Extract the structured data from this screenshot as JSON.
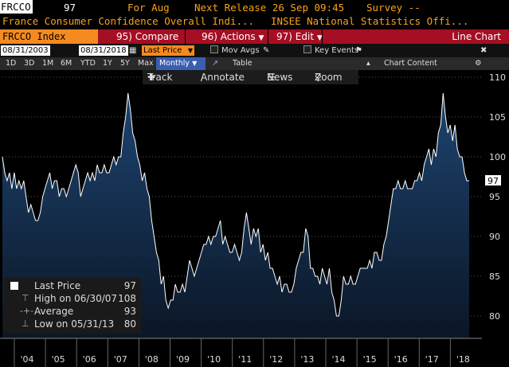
{
  "header": {
    "ticker": "FRCCO",
    "value": "97",
    "for_label": "For Aug",
    "next_release": "Next Release 26 Sep 09:45",
    "survey": "Survey --",
    "description": "France Consumer Confidence Overall Indi...",
    "source": "INSEE National Statistics Offi..."
  },
  "function_bar": {
    "index": "FRCCO Index",
    "compare_num": "95)",
    "compare": "Compare",
    "actions_num": "96)",
    "actions": "Actions",
    "edit_num": "97)",
    "edit": "Edit",
    "chart_type": "Line Chart"
  },
  "date_bar": {
    "start": "08/31/2003",
    "end": "08/31/2018",
    "field": "Last Price",
    "mov_avgs": "Mov Avgs",
    "key_events": "Key Events"
  },
  "period_bar": {
    "periods": [
      "1D",
      "3D",
      "1M",
      "6M",
      "YTD",
      "1Y",
      "5Y",
      "Max"
    ],
    "frequency": "Monthly",
    "table": "Table",
    "chart_content": "Chart Content"
  },
  "tools": {
    "track": "Track",
    "annotate": "Annotate",
    "news": "News",
    "zoom": "Zoom"
  },
  "legend": {
    "last_label": "Last Price",
    "last_value": "97",
    "high_label": "High on 06/30/07",
    "high_value": "108",
    "avg_label": "Average",
    "avg_value": "93",
    "low_label": "Low on 05/31/13",
    "low_value": "80"
  },
  "colors": {
    "accent": "#f58a1f",
    "function_bar": "#a50e23",
    "text_orange": "#f7a21b",
    "area_top": "#1a3a63",
    "area_bottom": "#0b1626"
  },
  "chart_data": {
    "type": "area",
    "title": "",
    "xlabel": "",
    "ylabel": "",
    "x_ticks": [
      "'04",
      "'05",
      "'06",
      "'07",
      "'08",
      "'09",
      "'10",
      "'11",
      "'12",
      "'13",
      "'14",
      "'15",
      "'16",
      "'17",
      "'18"
    ],
    "y_ticks": [
      "110",
      "105",
      "100",
      "95",
      "90",
      "85",
      "80"
    ],
    "ylim": [
      78,
      111
    ],
    "last_value_label": "97",
    "series": [
      {
        "values": [
          100,
          98,
          97,
          98,
          96,
          98,
          96,
          97,
          96,
          97,
          95,
          93,
          94,
          93,
          92,
          92,
          93,
          95,
          96,
          97,
          98,
          96,
          97,
          97,
          95,
          96,
          96,
          95,
          96,
          97,
          98,
          99,
          98,
          95,
          96,
          97,
          98,
          97,
          98,
          97,
          99,
          98,
          98,
          99,
          98,
          98,
          99,
          100,
          99,
          100,
          100,
          103,
          105,
          108,
          106,
          103,
          102,
          100,
          99,
          97,
          98,
          96,
          95,
          92,
          90,
          88,
          87,
          84,
          85,
          82,
          81,
          82,
          82,
          84,
          83,
          83,
          84,
          83,
          85,
          87,
          86,
          85,
          86,
          87,
          88,
          89,
          89,
          90,
          89,
          90,
          90,
          91,
          92,
          89,
          90,
          89,
          88,
          88,
          89,
          88,
          87,
          88,
          91,
          93,
          91,
          89,
          91,
          90,
          91,
          88,
          89,
          87,
          88,
          86,
          86,
          85,
          84,
          85,
          83,
          84,
          84,
          83,
          83,
          84,
          86,
          87,
          88,
          88,
          91,
          90,
          86,
          86,
          85,
          85,
          84,
          86,
          85,
          84,
          86,
          83,
          82,
          80,
          80,
          82,
          85,
          84,
          84,
          85,
          84,
          84,
          85,
          86,
          86,
          86,
          86,
          87,
          86,
          88,
          88,
          87,
          87,
          89,
          90,
          92,
          94,
          96,
          96,
          97,
          96,
          96,
          97,
          96,
          96,
          96,
          97,
          97,
          98,
          97,
          99,
          100,
          101,
          99,
          101,
          100,
          103,
          104,
          108,
          105,
          103,
          104,
          102,
          104,
          101,
          100,
          100,
          98,
          97,
          97
        ]
      }
    ]
  }
}
